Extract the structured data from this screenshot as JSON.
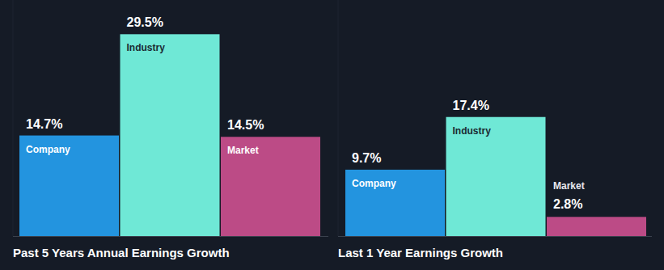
{
  "chart_data": [
    {
      "type": "bar",
      "title": "Past 5 Years Annual Earnings Growth",
      "categories": [
        "Company",
        "Industry",
        "Market"
      ],
      "values": [
        14.7,
        29.5,
        14.5
      ],
      "value_labels": [
        "14.7%",
        "29.5%",
        "14.5%"
      ],
      "colors": [
        "#2394df",
        "#6fe8d6",
        "#bc4b86"
      ],
      "ylim": [
        0,
        34.5
      ],
      "tick_labels": false,
      "data_labels": true,
      "grid": false
    },
    {
      "type": "bar",
      "title": "Last 1 Year Earnings Growth",
      "categories": [
        "Company",
        "Industry",
        "Market"
      ],
      "values": [
        9.7,
        17.4,
        2.8
      ],
      "value_labels": [
        "9.7%",
        "17.4%",
        "2.8%"
      ],
      "colors": [
        "#2394df",
        "#6fe8d6",
        "#bc4b86"
      ],
      "ylim": [
        0,
        34.5
      ],
      "tick_labels": false,
      "data_labels": true,
      "grid": false
    }
  ]
}
